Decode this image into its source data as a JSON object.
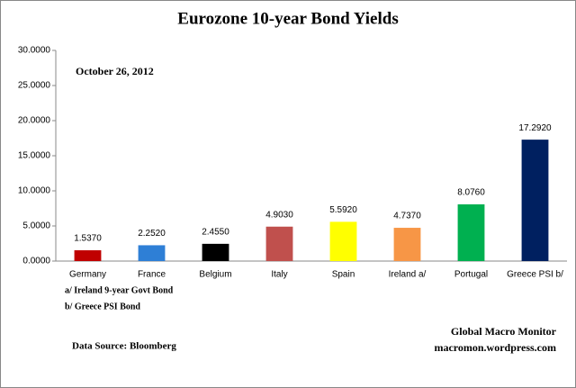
{
  "chart_data": {
    "type": "bar",
    "title": "Eurozone 10-year Bond Yields",
    "annotation": "October 26, 2012",
    "notes": [
      "a/ Ireland 9-year Govt Bond",
      "b/ Greece PSI Bond"
    ],
    "source": "Data Source:  Bloomberg",
    "credit": [
      "Global Macro Monitor",
      "macromon.wordpress.com"
    ],
    "categories": [
      "Germany",
      "France",
      "Belgium",
      "Italy",
      "Spain",
      "Ireland  a/",
      "Portugal",
      "Greece PSI b/"
    ],
    "values": [
      1.537,
      2.252,
      2.455,
      4.903,
      5.592,
      4.737,
      8.076,
      17.292
    ],
    "value_labels": [
      "1.5370",
      "2.2520",
      "2.4550",
      "4.9030",
      "5.5920",
      "4.7370",
      "8.0760",
      "17.2920"
    ],
    "colors": [
      "#c00000",
      "#2e7fd6",
      "#000000",
      "#c0504d",
      "#ffff00",
      "#f79646",
      "#00b050",
      "#002060"
    ],
    "ylim": [
      0,
      30
    ],
    "yticks": [
      {
        "value": 0,
        "label": "0.0000"
      },
      {
        "value": 5,
        "label": "5.0000"
      },
      {
        "value": 10,
        "label": "10.0000"
      },
      {
        "value": 15,
        "label": "15.0000"
      },
      {
        "value": 20,
        "label": "20.0000"
      },
      {
        "value": 25,
        "label": "25.0000"
      },
      {
        "value": 30,
        "label": "30.0000"
      }
    ],
    "grid": false
  }
}
